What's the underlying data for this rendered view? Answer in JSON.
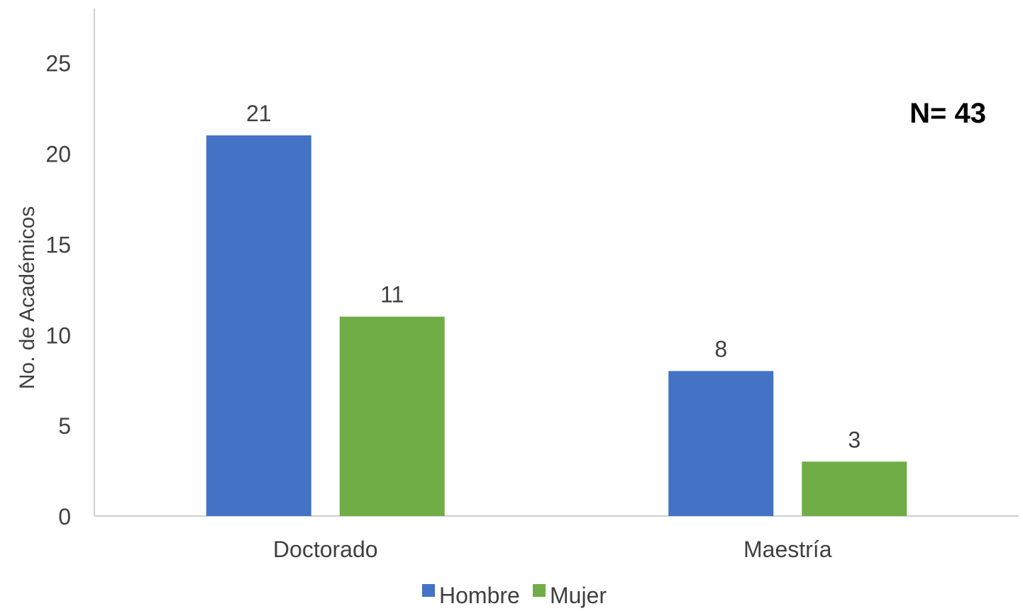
{
  "chart_data": {
    "type": "bar",
    "categories": [
      "Doctorado",
      "Maestría"
    ],
    "series": [
      {
        "name": "Hombre",
        "values": [
          21,
          8
        ],
        "color": "#4472C4"
      },
      {
        "name": "Mujer",
        "values": [
          11,
          3
        ],
        "color": "#70AD47"
      }
    ],
    "ylabel": "No. de Académicos",
    "xlabel": "",
    "ylim": [
      0,
      28
    ],
    "yticks": [
      0,
      5,
      10,
      15,
      20,
      25
    ],
    "annotation": "N= 43",
    "legend_position": "bottom",
    "grid": false
  }
}
